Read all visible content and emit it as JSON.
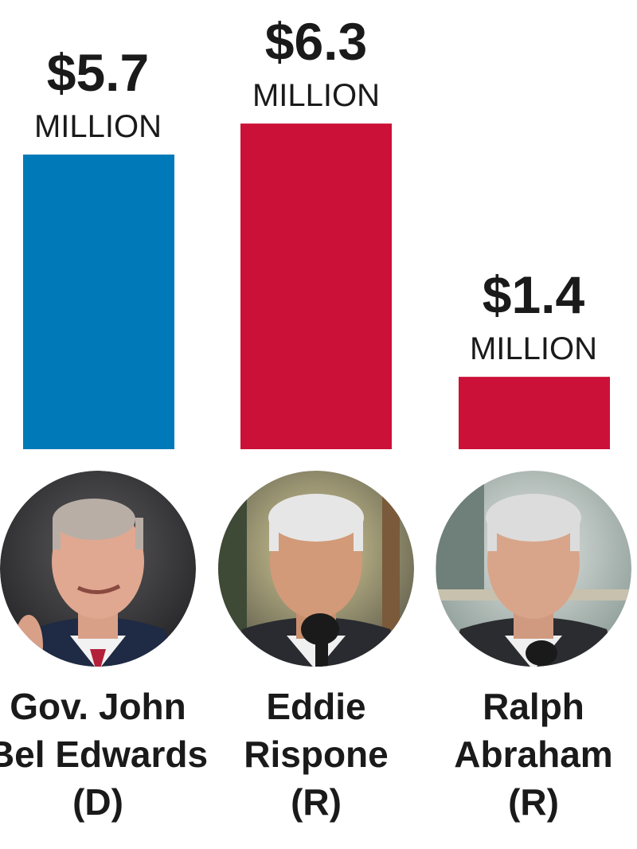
{
  "chart_data": {
    "type": "bar",
    "categories": [
      "Gov. John Bel Edwards (D)",
      "Eddie Rispone (R)",
      "Ralph Abraham (R)"
    ],
    "values": [
      5.7,
      6.3,
      1.4
    ],
    "value_labels": [
      "$5.7",
      "$6.3",
      "$1.4"
    ],
    "unit_label": "MILLION",
    "colors": [
      "#0079b8",
      "#cc1138",
      "#cc1138"
    ],
    "candidates": [
      {
        "name_lines": [
          "Gov. John",
          "Bel Edwards",
          "(D)"
        ],
        "photo": "portrait-edwards"
      },
      {
        "name_lines": [
          "Eddie",
          "Rispone",
          "(R)"
        ],
        "photo": "portrait-rispone"
      },
      {
        "name_lines": [
          "Ralph",
          "Abraham",
          "(R)"
        ],
        "photo": "portrait-abraham"
      }
    ],
    "grid": false,
    "legend": "none"
  }
}
